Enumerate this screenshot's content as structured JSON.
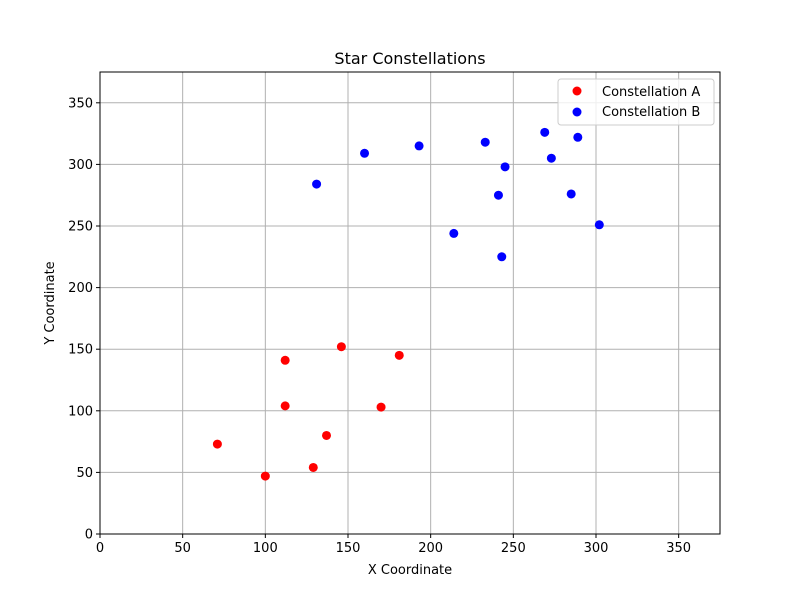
{
  "chart_data": {
    "type": "scatter",
    "title": "Star Constellations",
    "xlabel": "X Coordinate",
    "ylabel": "Y Coordinate",
    "xlim": [
      0,
      375
    ],
    "ylim": [
      0,
      375
    ],
    "xticks": [
      0,
      50,
      100,
      150,
      200,
      250,
      300,
      350
    ],
    "yticks": [
      0,
      50,
      100,
      150,
      200,
      250,
      300,
      350
    ],
    "grid": true,
    "legend_position": "top-right",
    "series": [
      {
        "name": "Constellation A",
        "color": "#ff0000",
        "points": [
          {
            "x": 71,
            "y": 73
          },
          {
            "x": 100,
            "y": 47
          },
          {
            "x": 112,
            "y": 141
          },
          {
            "x": 112,
            "y": 104
          },
          {
            "x": 129,
            "y": 54
          },
          {
            "x": 137,
            "y": 80
          },
          {
            "x": 146,
            "y": 152
          },
          {
            "x": 170,
            "y": 103
          },
          {
            "x": 181,
            "y": 145
          }
        ]
      },
      {
        "name": "Constellation B",
        "color": "#0000ff",
        "points": [
          {
            "x": 131,
            "y": 284
          },
          {
            "x": 160,
            "y": 309
          },
          {
            "x": 193,
            "y": 315
          },
          {
            "x": 214,
            "y": 244
          },
          {
            "x": 233,
            "y": 318
          },
          {
            "x": 241,
            "y": 275
          },
          {
            "x": 243,
            "y": 225
          },
          {
            "x": 245,
            "y": 298
          },
          {
            "x": 269,
            "y": 326
          },
          {
            "x": 273,
            "y": 305
          },
          {
            "x": 285,
            "y": 276
          },
          {
            "x": 289,
            "y": 322
          },
          {
            "x": 302,
            "y": 251
          }
        ]
      }
    ]
  }
}
